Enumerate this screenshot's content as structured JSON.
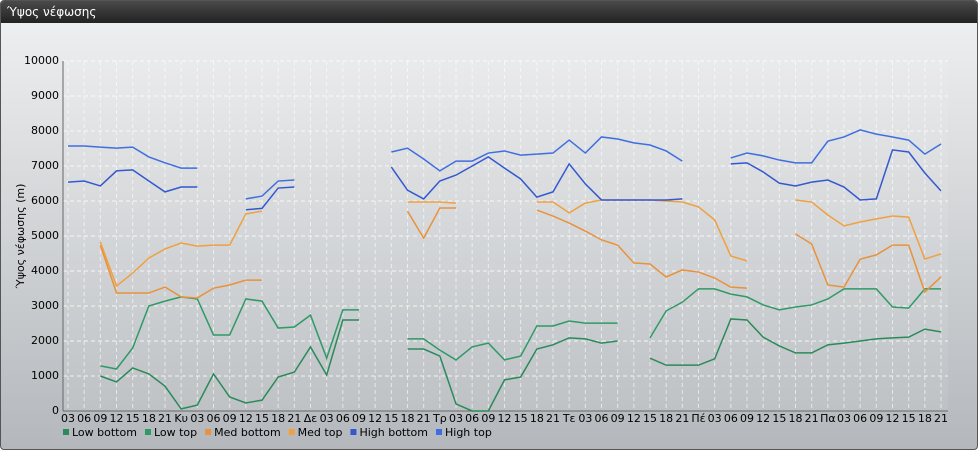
{
  "chart_data": {
    "type": "line",
    "title": "Ύψος νέφωσης",
    "y_label": "Ύψος νέφωσης (m)",
    "categories": [
      "03",
      "06",
      "09",
      "12",
      "15",
      "18",
      "21",
      "Κυ",
      "03",
      "06",
      "09",
      "12",
      "15",
      "18",
      "21",
      "Δε",
      "03",
      "06",
      "09",
      "12",
      "15",
      "18",
      "21",
      "Τρ",
      "03",
      "06",
      "09",
      "12",
      "15",
      "18",
      "21",
      "Τε",
      "03",
      "06",
      "09",
      "12",
      "15",
      "18",
      "21",
      "Πέ",
      "03",
      "06",
      "09",
      "12",
      "15",
      "18",
      "21",
      "Πα",
      "03",
      "06",
      "09",
      "12",
      "15",
      "18",
      "21"
    ],
    "ylim": [
      0,
      10000
    ],
    "yticks": [
      0,
      1000,
      2000,
      3000,
      4000,
      5000,
      6000,
      7000,
      8000,
      9000,
      10000
    ],
    "grid": true,
    "series": [
      {
        "name": "Low bottom",
        "color": "#2a8a5a",
        "values": [
          null,
          null,
          1000,
          830,
          1230,
          1060,
          710,
          60,
          170,
          1060,
          400,
          230,
          310,
          970,
          1110,
          1830,
          1030,
          2600,
          2600,
          null,
          null,
          1770,
          1770,
          1570,
          200,
          0,
          0,
          890,
          970,
          1770,
          1890,
          2090,
          2060,
          1940,
          2000,
          null,
          1510,
          1310,
          1310,
          1310,
          1490,
          2630,
          2600,
          2110,
          1860,
          1660,
          1660,
          1890,
          1940,
          2000,
          2060,
          2090,
          2110,
          2340,
          2260
        ]
      },
      {
        "name": "Low top",
        "color": "#2e9a66",
        "values": [
          null,
          null,
          1290,
          1200,
          1800,
          3000,
          3140,
          3260,
          3200,
          2170,
          2170,
          3200,
          3140,
          2370,
          2400,
          2740,
          1510,
          2890,
          2890,
          null,
          null,
          2060,
          2060,
          1740,
          1460,
          1830,
          1940,
          1460,
          1570,
          2430,
          2430,
          2570,
          2510,
          2510,
          2510,
          null,
          2090,
          2860,
          3110,
          3490,
          3490,
          3340,
          3260,
          3030,
          2890,
          2970,
          3030,
          3200,
          3490,
          3490,
          3490,
          2970,
          2940,
          3490,
          3490
        ]
      },
      {
        "name": "Med bottom",
        "color": "#e8923a",
        "values": [
          null,
          null,
          4740,
          3370,
          3370,
          3370,
          3540,
          3260,
          3230,
          3510,
          3600,
          3740,
          3740,
          null,
          null,
          null,
          null,
          null,
          null,
          null,
          null,
          5710,
          4940,
          5800,
          5800,
          null,
          null,
          null,
          null,
          5740,
          5570,
          5370,
          5140,
          4890,
          4740,
          4230,
          4200,
          3830,
          4030,
          3970,
          3800,
          3540,
          3510,
          null,
          null,
          5060,
          4770,
          3600,
          3540,
          4340,
          4460,
          4740,
          4740,
          3400,
          3830
        ]
      },
      {
        "name": "Med top",
        "color": "#f0a040",
        "values": [
          null,
          null,
          4830,
          3570,
          3940,
          4370,
          4630,
          4800,
          4710,
          4740,
          4740,
          5630,
          5710,
          null,
          null,
          null,
          null,
          null,
          null,
          null,
          null,
          5970,
          5970,
          5970,
          5940,
          null,
          null,
          null,
          null,
          5970,
          5970,
          5660,
          5940,
          6030,
          6030,
          6030,
          6030,
          6000,
          5970,
          5830,
          5460,
          4430,
          4290,
          null,
          null,
          6030,
          5970,
          5600,
          5290,
          5400,
          5490,
          5570,
          5540,
          4340,
          4490
        ]
      },
      {
        "name": "High bottom",
        "color": "#3458d0",
        "values": [
          6540,
          6570,
          6430,
          6860,
          6890,
          6570,
          6260,
          6400,
          6400,
          null,
          null,
          5750,
          5790,
          6370,
          6400,
          null,
          null,
          null,
          null,
          null,
          6970,
          6310,
          6060,
          6570,
          6740,
          7000,
          7260,
          6940,
          6630,
          6110,
          6260,
          7060,
          6490,
          6030,
          6030,
          6030,
          6030,
          6030,
          6060,
          null,
          null,
          7060,
          7090,
          6830,
          6510,
          6430,
          6540,
          6600,
          6400,
          6030,
          6060,
          7460,
          7400,
          6800,
          6290
        ]
      },
      {
        "name": "High top",
        "color": "#3f6ee0",
        "values": [
          7570,
          7570,
          7540,
          7510,
          7540,
          7260,
          7090,
          6940,
          6940,
          null,
          null,
          6060,
          6140,
          6570,
          6600,
          null,
          null,
          null,
          null,
          null,
          7400,
          7510,
          7200,
          6860,
          7140,
          7140,
          7370,
          7430,
          7310,
          7340,
          7370,
          7740,
          7370,
          7830,
          7770,
          7660,
          7600,
          7430,
          7140,
          null,
          null,
          7230,
          7370,
          7290,
          7170,
          7090,
          7090,
          7710,
          7830,
          8030,
          7910,
          7830,
          7740,
          7340,
          7630
        ]
      }
    ]
  }
}
